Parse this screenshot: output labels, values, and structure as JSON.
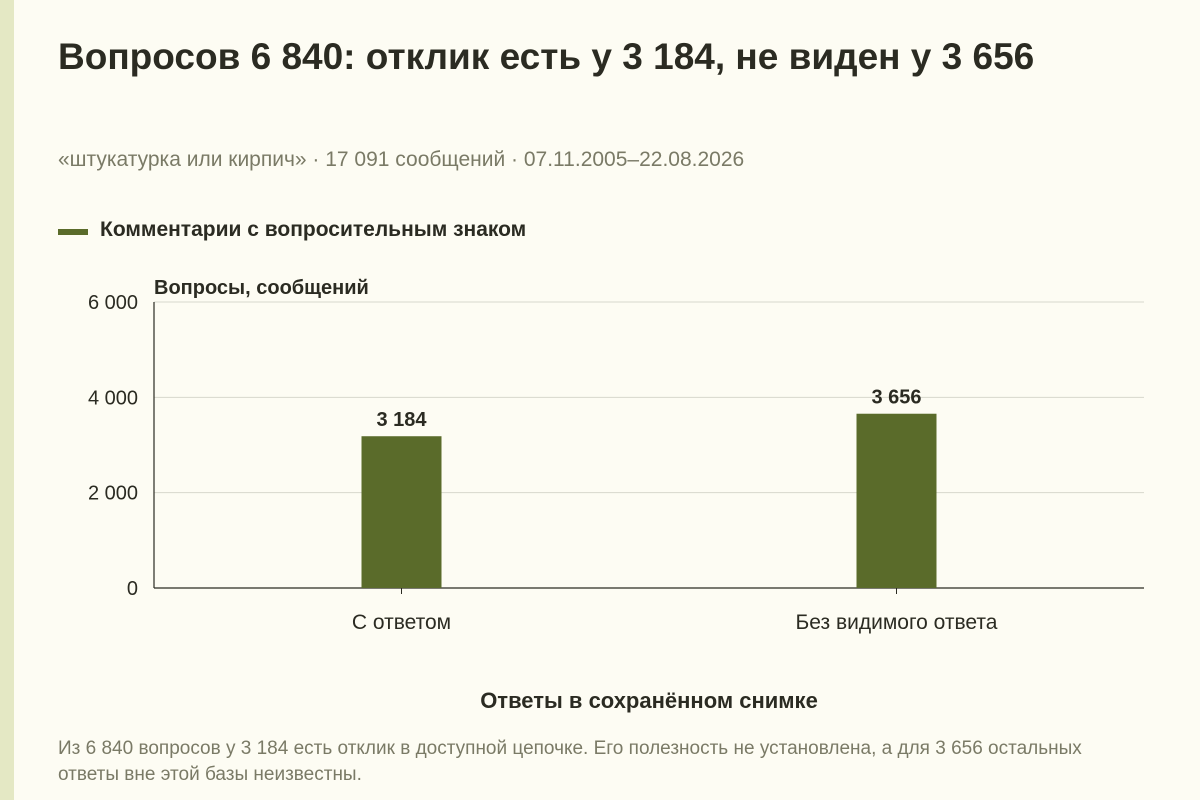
{
  "title": "Вопросов 6 840: отклик есть у 3 184, не виден у 3 656",
  "subtitle": "«штукатурка или кирпич» · 17 091 сообщений · 07.11.2005–22.08.2026",
  "footnote": "Из 6 840 вопросов у 3 184 есть отклик в доступной цепочке. Его полезность не установлена, а для 3 656 остальных ответы вне этой базы неизвестны.",
  "colors": {
    "bar": "#5a6b2a",
    "grid": "#d7d7cc",
    "axis": "#2b2b22",
    "text": "#2b2b22",
    "muted": "#7a7a66",
    "background": "#fdfcf3",
    "accent_strip": "#e4e8c4"
  },
  "chart_data": {
    "type": "bar",
    "title": "Вопросов 6 840: отклик есть у 3 184, не виден у 3 656",
    "categories": [
      "С ответом",
      "Без видимого ответа"
    ],
    "series": [
      {
        "name": "Комментарии с вопросительным знаком",
        "values": [
          3184,
          3656
        ],
        "value_labels": [
          "3 184",
          "3 656"
        ]
      }
    ],
    "xlabel": "Ответы в сохранённом снимке",
    "ylabel": "Вопросы, сообщений",
    "ylim": [
      0,
      6000
    ],
    "yticks": [
      0,
      2000,
      4000,
      6000
    ],
    "ytick_labels": [
      "0",
      "2 000",
      "4 000",
      "6 000"
    ],
    "grid": true,
    "legend_position": "top-left"
  }
}
